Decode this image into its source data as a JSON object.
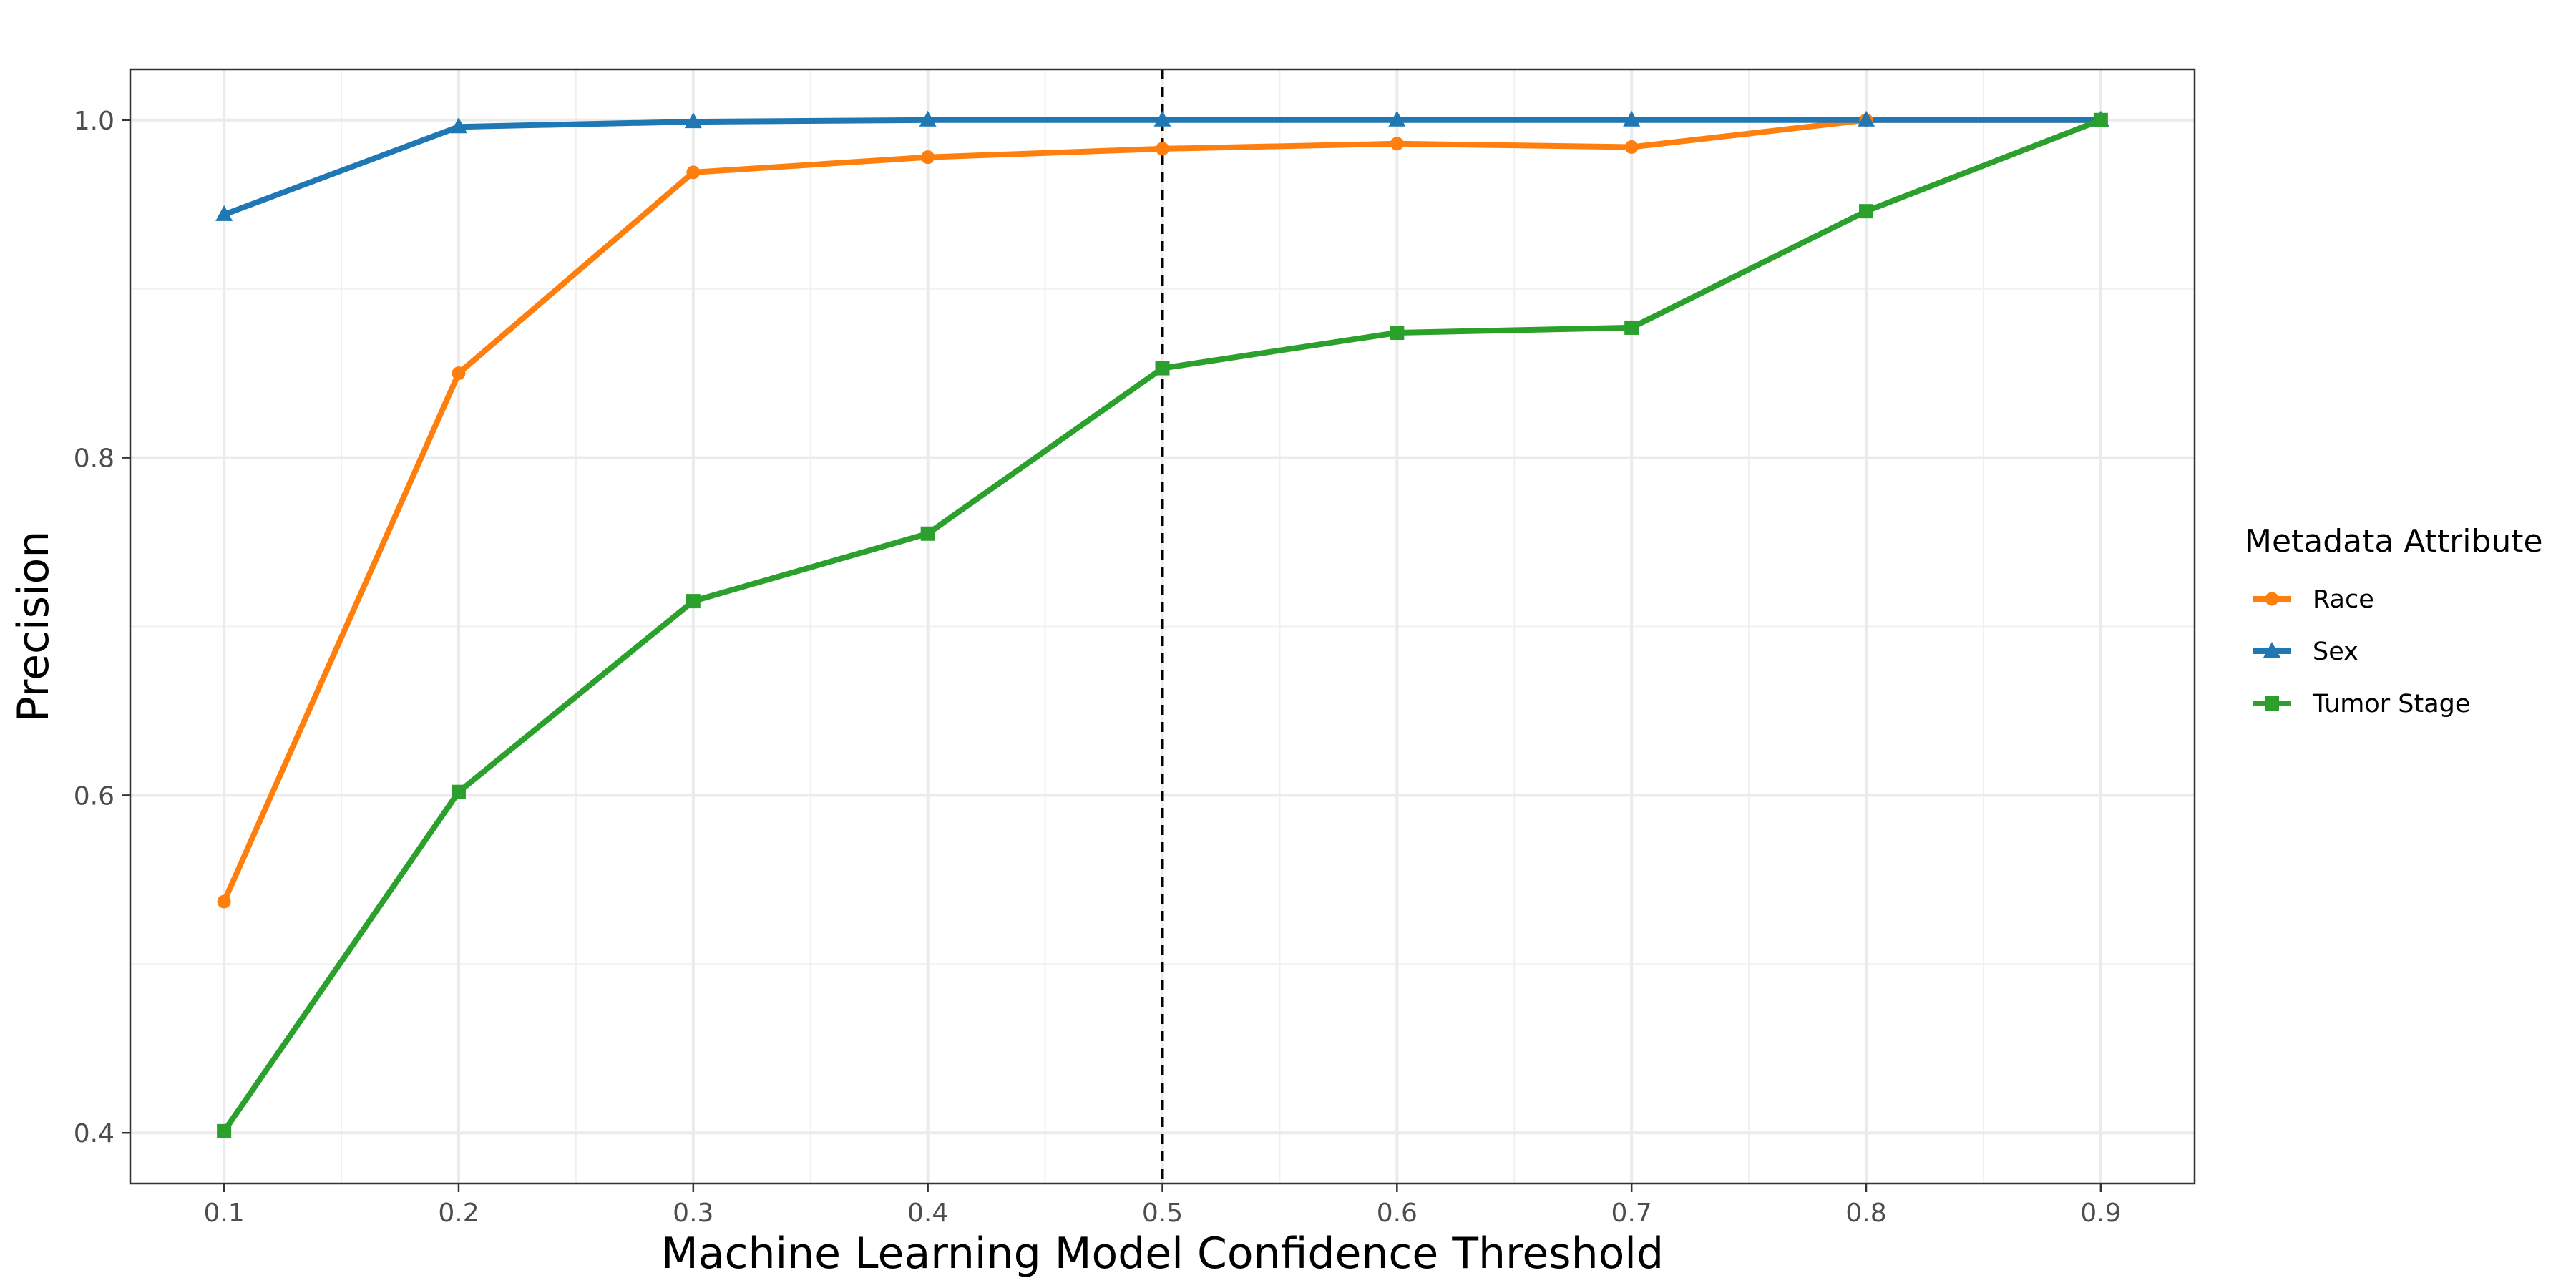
{
  "chart_data": {
    "type": "line",
    "title": "",
    "xlabel": "Machine Learning Model Confidence Threshold",
    "ylabel": "Precision",
    "x": [
      0.1,
      0.2,
      0.3,
      0.4,
      0.5,
      0.6,
      0.7,
      0.8,
      0.9
    ],
    "x_ticks": [
      "0.1",
      "0.2",
      "0.3",
      "0.4",
      "0.5",
      "0.6",
      "0.7",
      "0.8",
      "0.9"
    ],
    "y_ticks": [
      "0.4",
      "0.6",
      "0.8",
      "1.0"
    ],
    "xlim": [
      0.06,
      0.94
    ],
    "ylim": [
      0.37,
      1.03
    ],
    "grid": true,
    "reference_line": {
      "x": 0.5,
      "style": "dashed",
      "color": "#000000"
    },
    "legend": {
      "title": "Metadata Attribute",
      "position": "right"
    },
    "series": [
      {
        "name": "Race",
        "color": "#ff7f0e",
        "marker": "circle",
        "values": [
          0.537,
          0.85,
          0.969,
          0.978,
          0.983,
          0.986,
          0.984,
          1.0,
          1.0
        ]
      },
      {
        "name": "Sex",
        "color": "#1f77b4",
        "marker": "triangle",
        "values": [
          0.944,
          0.996,
          0.999,
          1.0,
          1.0,
          1.0,
          1.0,
          1.0,
          1.0
        ]
      },
      {
        "name": "Tumor Stage",
        "color": "#2ca02c",
        "marker": "square",
        "values": [
          0.401,
          0.602,
          0.715,
          0.755,
          0.853,
          0.874,
          0.877,
          0.946,
          1.0
        ]
      }
    ]
  }
}
